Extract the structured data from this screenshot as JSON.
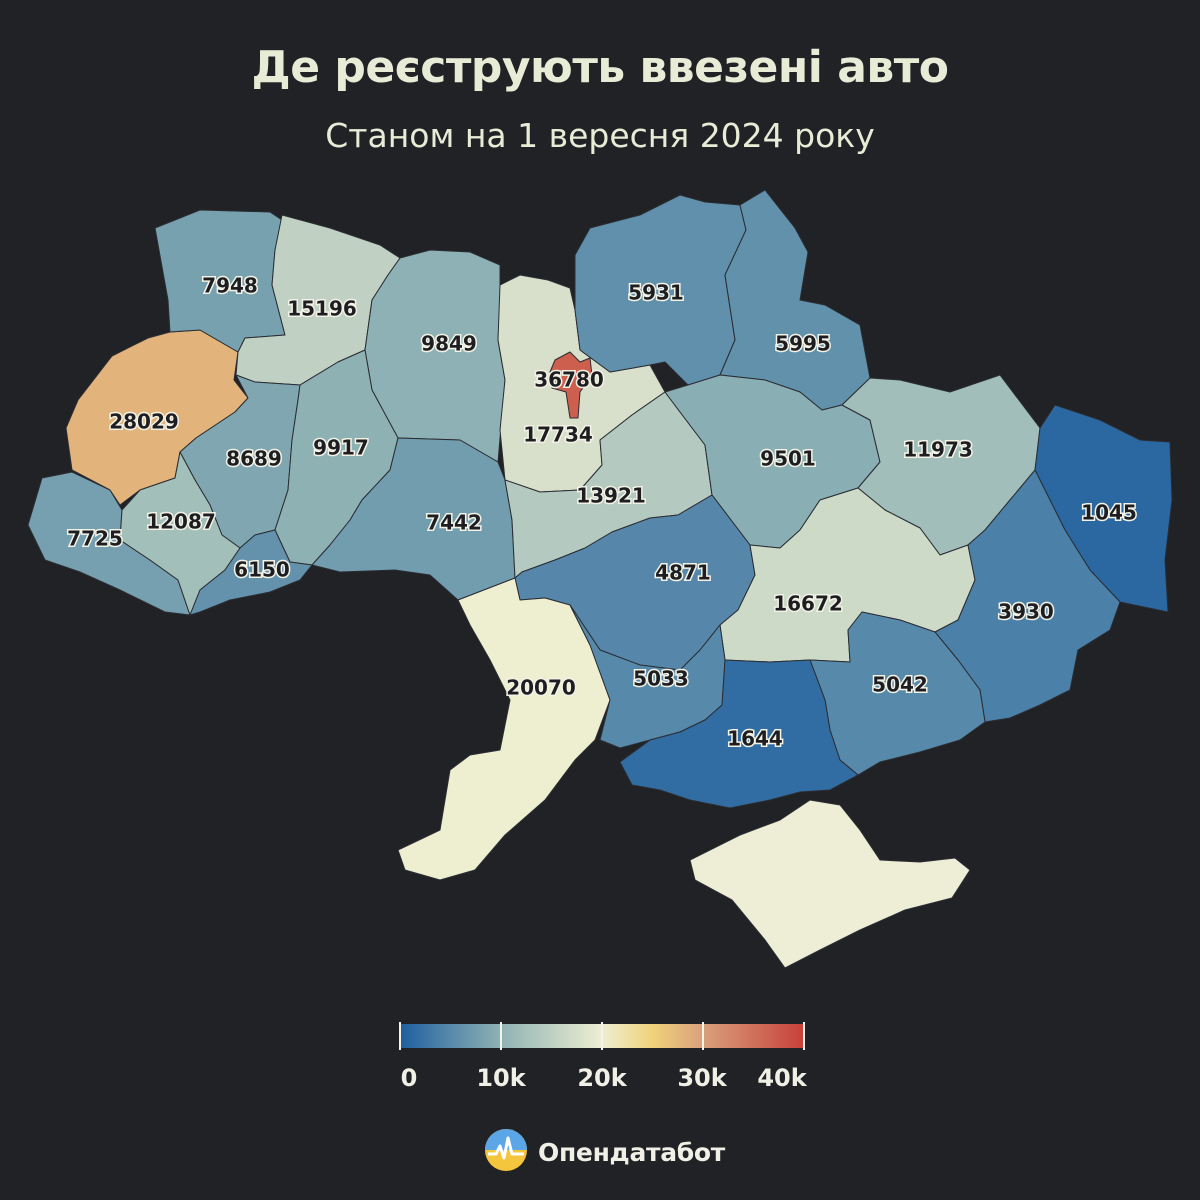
{
  "header": {
    "title": "Де реєструють ввезені авто",
    "subtitle": "Станом на 1 вересня 2024 року"
  },
  "map_data": {
    "metric": "ввезені авто",
    "regions": [
      {
        "key": "volyn",
        "value": 7948
      },
      {
        "key": "rivne",
        "value": 15196
      },
      {
        "key": "zhytomyr",
        "value": 9849
      },
      {
        "key": "kyiv_city",
        "value": 36780
      },
      {
        "key": "kyiv_oblast",
        "value": 17734
      },
      {
        "key": "chernihiv",
        "value": 5931
      },
      {
        "key": "sumy",
        "value": 5995
      },
      {
        "key": "lviv",
        "value": 28029
      },
      {
        "key": "ternopil",
        "value": 8689
      },
      {
        "key": "khmelnytskyi",
        "value": 9917
      },
      {
        "key": "vinnytsia",
        "value": 7442
      },
      {
        "key": "cherkasy",
        "value": 13921
      },
      {
        "key": "poltava",
        "value": 9501
      },
      {
        "key": "kharkiv",
        "value": 11973
      },
      {
        "key": "luhansk",
        "value": 1045
      },
      {
        "key": "zakarpattia",
        "value": 7725
      },
      {
        "key": "ivano_frankivsk",
        "value": 12087
      },
      {
        "key": "chernivtsi",
        "value": 6150
      },
      {
        "key": "kirovohrad",
        "value": 4871
      },
      {
        "key": "dnipropetrovsk",
        "value": 16672
      },
      {
        "key": "donetsk",
        "value": 3930
      },
      {
        "key": "odesa",
        "value": 20070
      },
      {
        "key": "mykolaiv",
        "value": 5033
      },
      {
        "key": "zaporizhzhia",
        "value": 5042
      },
      {
        "key": "kherson",
        "value": 1644
      },
      {
        "key": "crimea",
        "value": null
      }
    ]
  },
  "legend": {
    "min": 0,
    "max": 40000,
    "ticks": [
      {
        "value": 0,
        "label": "0"
      },
      {
        "value": 10000,
        "label": "10k"
      },
      {
        "value": 20000,
        "label": "20k"
      },
      {
        "value": 30000,
        "label": "30k"
      },
      {
        "value": 40000,
        "label": "40k"
      }
    ],
    "color_stops": [
      {
        "value": 0,
        "color": "#1f5fa0"
      },
      {
        "value": 10000,
        "color": "#8fb2b4"
      },
      {
        "value": 20000,
        "color": "#eeeed2"
      },
      {
        "value": 25000,
        "color": "#f0d27a"
      },
      {
        "value": 30000,
        "color": "#d9a17c"
      },
      {
        "value": 40000,
        "color": "#c8403a"
      }
    ],
    "no_data_color": "#eeeed6"
  },
  "brand": {
    "name": "Опендатабот",
    "logo_icon": "opendatabot-logo-icon"
  }
}
